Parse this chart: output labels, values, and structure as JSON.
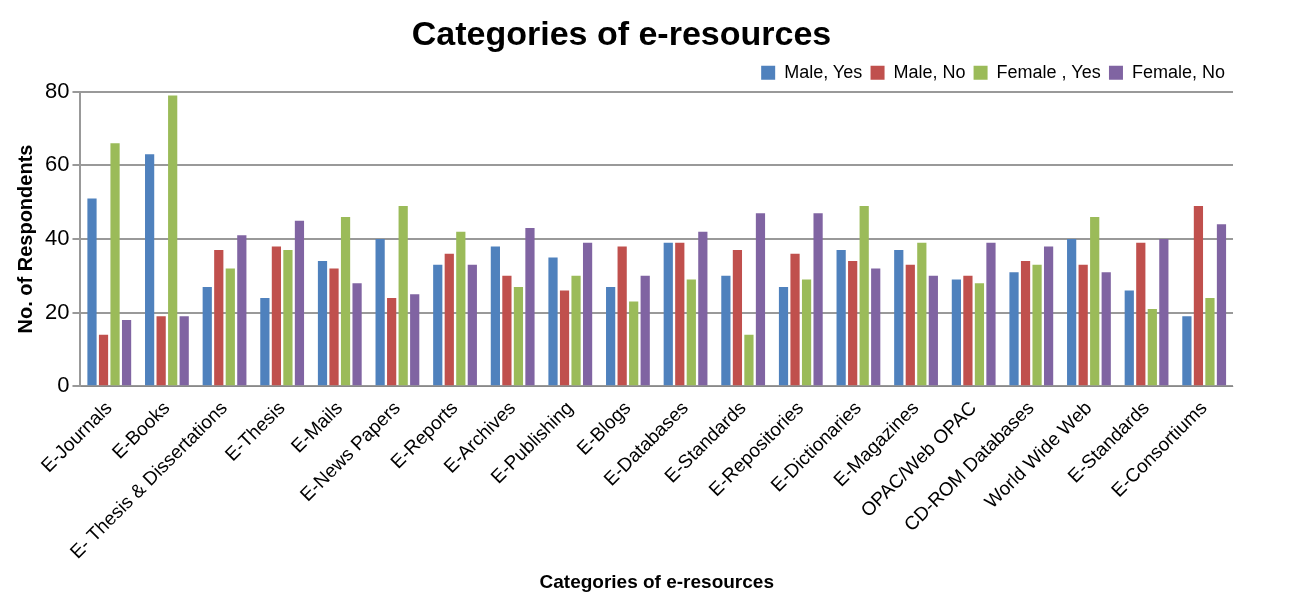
{
  "chart_data": {
    "type": "bar",
    "title": "Categories of e-resources",
    "xlabel": "Categories of e-resources",
    "ylabel": "No. of Respondents",
    "categories": [
      "E-Journals",
      "E-Books",
      "E- Thesis & Dissertations",
      "E-Thesis",
      "E-Mails",
      "E-News Papers",
      "E-Reports",
      "E-Archives",
      "E-Publishing",
      "E-Blogs",
      "E-Databases",
      "E-Standards",
      "E-Repositories",
      "E-Dictionaries",
      "E-Magazines",
      "OPAC/Web OPAC",
      "CD-ROM Databases",
      "World Wide Web",
      "E-Standards",
      "E-Consortiums"
    ],
    "series": [
      {
        "name": "Male, Yes",
        "color": "#4f81bd",
        "values": [
          51,
          63,
          27,
          24,
          34,
          40,
          33,
          38,
          35,
          27,
          39,
          30,
          27,
          37,
          37,
          29,
          31,
          40,
          26,
          19
        ]
      },
      {
        "name": "Male, No",
        "color": "#c0504d",
        "values": [
          14,
          19,
          37,
          38,
          32,
          24,
          36,
          30,
          26,
          38,
          39,
          37,
          36,
          34,
          33,
          30,
          34,
          33,
          39,
          49
        ]
      },
      {
        "name": "Female , Yes",
        "color": "#9bbb59",
        "values": [
          66,
          79,
          32,
          37,
          46,
          49,
          42,
          27,
          30,
          23,
          29,
          14,
          29,
          49,
          39,
          28,
          33,
          46,
          21,
          24
        ]
      },
      {
        "name": "Female, No",
        "color": "#8064a2",
        "values": [
          18,
          19,
          41,
          45,
          28,
          25,
          33,
          43,
          39,
          30,
          42,
          47,
          47,
          32,
          30,
          39,
          38,
          31,
          40,
          44
        ]
      }
    ],
    "ylim": [
      0,
      80
    ],
    "yticks": [
      0,
      20,
      40,
      60,
      80
    ],
    "grid": "y",
    "legend": "top right"
  }
}
